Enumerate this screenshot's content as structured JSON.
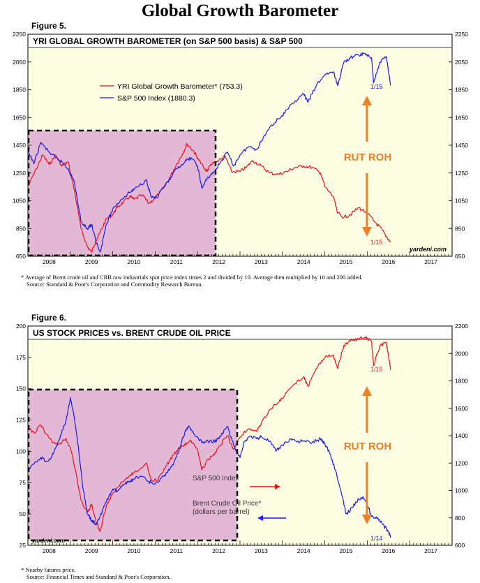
{
  "page": {
    "title": "Global Growth Barometer",
    "source_tag": "yardeni.com"
  },
  "chart_data": [
    {
      "type": "line",
      "figure_label": "Figure 5.",
      "title": "YRI GLOBAL GROWTH BAROMETER (on S&P 500 basis) & S&P 500",
      "x_ticks": [
        "2008",
        "2009",
        "2010",
        "2011",
        "2012",
        "2013",
        "2014",
        "2015",
        "2016",
        "2017"
      ],
      "xlim": [
        2007.5,
        2017.5
      ],
      "left_axis": {
        "ticks": [
          650,
          850,
          1050,
          1250,
          1450,
          1650,
          1850,
          2050,
          2250
        ],
        "ylim": [
          650,
          2250
        ]
      },
      "right_axis": {
        "ticks": [
          650,
          850,
          1050,
          1250,
          1450,
          1650,
          1850,
          2050,
          2250
        ],
        "ylim": [
          650,
          2250
        ]
      },
      "grid": false,
      "legend_position": "top-left",
      "series": [
        {
          "name": "YRI Global Growth Barometer* (753.3)",
          "color": "#e8141a",
          "axis": "left",
          "points": [
            [
              2007.5,
              1150
            ],
            [
              2007.7,
              1280
            ],
            [
              2007.85,
              1380
            ],
            [
              2008.0,
              1310
            ],
            [
              2008.15,
              1380
            ],
            [
              2008.3,
              1300
            ],
            [
              2008.45,
              1330
            ],
            [
              2008.6,
              1120
            ],
            [
              2008.75,
              850
            ],
            [
              2008.9,
              720
            ],
            [
              2009.0,
              680
            ],
            [
              2009.1,
              760
            ],
            [
              2009.2,
              820
            ],
            [
              2009.35,
              920
            ],
            [
              2009.5,
              950
            ],
            [
              2009.6,
              1000
            ],
            [
              2009.75,
              1040
            ],
            [
              2009.9,
              1080
            ],
            [
              2010.0,
              1060
            ],
            [
              2010.2,
              1090
            ],
            [
              2010.35,
              1030
            ],
            [
              2010.5,
              1070
            ],
            [
              2010.7,
              1140
            ],
            [
              2010.85,
              1220
            ],
            [
              2011.0,
              1310
            ],
            [
              2011.15,
              1390
            ],
            [
              2011.25,
              1460
            ],
            [
              2011.4,
              1410
            ],
            [
              2011.5,
              1360
            ],
            [
              2011.7,
              1260
            ],
            [
              2011.85,
              1320
            ],
            [
              2012.0,
              1340
            ],
            [
              2012.15,
              1370
            ],
            [
              2012.3,
              1260
            ],
            [
              2012.5,
              1260
            ],
            [
              2012.65,
              1290
            ],
            [
              2012.8,
              1340
            ],
            [
              2013.0,
              1300
            ],
            [
              2013.2,
              1250
            ],
            [
              2013.4,
              1240
            ],
            [
              2013.6,
              1260
            ],
            [
              2013.8,
              1290
            ],
            [
              2014.0,
              1300
            ],
            [
              2014.2,
              1290
            ],
            [
              2014.4,
              1250
            ],
            [
              2014.5,
              1150
            ],
            [
              2014.7,
              1080
            ],
            [
              2014.8,
              960
            ],
            [
              2014.95,
              930
            ],
            [
              2015.1,
              950
            ],
            [
              2015.3,
              1000
            ],
            [
              2015.5,
              960
            ],
            [
              2015.7,
              890
            ],
            [
              2015.85,
              840
            ],
            [
              2015.95,
              790
            ],
            [
              2016.05,
              753
            ]
          ],
          "end_label": "1/15"
        },
        {
          "name": "S&P 500 Index (1880.3)",
          "color": "#1a1aee",
          "axis": "right",
          "points": [
            [
              2007.5,
              1400
            ],
            [
              2007.65,
              1320
            ],
            [
              2007.8,
              1470
            ],
            [
              2008.0,
              1400
            ],
            [
              2008.15,
              1360
            ],
            [
              2008.3,
              1330
            ],
            [
              2008.45,
              1280
            ],
            [
              2008.6,
              1180
            ],
            [
              2008.75,
              900
            ],
            [
              2008.9,
              850
            ],
            [
              2009.0,
              880
            ],
            [
              2009.1,
              760
            ],
            [
              2009.2,
              680
            ],
            [
              2009.35,
              880
            ],
            [
              2009.5,
              990
            ],
            [
              2009.7,
              1060
            ],
            [
              2009.9,
              1110
            ],
            [
              2010.0,
              1130
            ],
            [
              2010.3,
              1200
            ],
            [
              2010.4,
              1080
            ],
            [
              2010.55,
              1070
            ],
            [
              2010.7,
              1150
            ],
            [
              2010.85,
              1200
            ],
            [
              2011.0,
              1280
            ],
            [
              2011.2,
              1330
            ],
            [
              2011.35,
              1360
            ],
            [
              2011.5,
              1300
            ],
            [
              2011.6,
              1140
            ],
            [
              2011.75,
              1220
            ],
            [
              2011.9,
              1260
            ],
            [
              2012.0,
              1310
            ],
            [
              2012.2,
              1400
            ],
            [
              2012.35,
              1300
            ],
            [
              2012.5,
              1380
            ],
            [
              2012.7,
              1440
            ],
            [
              2012.9,
              1420
            ],
            [
              2013.0,
              1480
            ],
            [
              2013.2,
              1580
            ],
            [
              2013.4,
              1640
            ],
            [
              2013.55,
              1680
            ],
            [
              2013.8,
              1770
            ],
            [
              2014.0,
              1820
            ],
            [
              2014.1,
              1760
            ],
            [
              2014.3,
              1880
            ],
            [
              2014.5,
              1960
            ],
            [
              2014.7,
              1980
            ],
            [
              2014.8,
              1880
            ],
            [
              2014.95,
              2050
            ],
            [
              2015.1,
              2080
            ],
            [
              2015.3,
              2100
            ],
            [
              2015.45,
              2110
            ],
            [
              2015.6,
              2080
            ],
            [
              2015.65,
              1900
            ],
            [
              2015.8,
              2050
            ],
            [
              2015.95,
              2090
            ],
            [
              2016.0,
              1990
            ],
            [
              2016.05,
              1880
            ]
          ],
          "end_label": "1/15"
        }
      ],
      "annotation_text": "RUT ROH"
    },
    {
      "type": "line",
      "figure_label": "Figure 6.",
      "title": "US STOCK PRICES vs. BRENT CRUDE OIL PRICE",
      "x_ticks": [
        "2008",
        "2009",
        "2010",
        "2011",
        "2012",
        "2013",
        "2014",
        "2015",
        "2016",
        "2017"
      ],
      "xlim": [
        2007.5,
        2017.5
      ],
      "left_axis": {
        "ticks": [
          25,
          50,
          75,
          100,
          125,
          150,
          175,
          200
        ],
        "ylim": [
          25,
          200
        ]
      },
      "right_axis": {
        "ticks": [
          600,
          800,
          1000,
          1200,
          1400,
          1600,
          1800,
          2000,
          2200
        ],
        "ylim": [
          600,
          2200
        ]
      },
      "grid": false,
      "series": [
        {
          "name": "S&P 500 Index",
          "color": "#e8141a",
          "axis": "right",
          "points": [
            [
              2007.5,
              1460
            ],
            [
              2007.65,
              1420
            ],
            [
              2007.8,
              1480
            ],
            [
              2008.0,
              1380
            ],
            [
              2008.2,
              1330
            ],
            [
              2008.4,
              1380
            ],
            [
              2008.55,
              1260
            ],
            [
              2008.75,
              930
            ],
            [
              2008.9,
              840
            ],
            [
              2009.0,
              900
            ],
            [
              2009.1,
              780
            ],
            [
              2009.2,
              700
            ],
            [
              2009.35,
              890
            ],
            [
              2009.5,
              980
            ],
            [
              2009.7,
              1060
            ],
            [
              2009.9,
              1110
            ],
            [
              2010.0,
              1130
            ],
            [
              2010.3,
              1200
            ],
            [
              2010.4,
              1080
            ],
            [
              2010.55,
              1070
            ],
            [
              2010.7,
              1150
            ],
            [
              2010.85,
              1220
            ],
            [
              2011.0,
              1290
            ],
            [
              2011.2,
              1340
            ],
            [
              2011.35,
              1360
            ],
            [
              2011.5,
              1300
            ],
            [
              2011.6,
              1150
            ],
            [
              2011.75,
              1230
            ],
            [
              2011.9,
              1260
            ],
            [
              2012.0,
              1320
            ],
            [
              2012.2,
              1400
            ],
            [
              2012.35,
              1300
            ],
            [
              2012.5,
              1390
            ],
            [
              2012.7,
              1450
            ],
            [
              2012.9,
              1430
            ],
            [
              2013.0,
              1490
            ],
            [
              2013.2,
              1590
            ],
            [
              2013.4,
              1640
            ],
            [
              2013.55,
              1690
            ],
            [
              2013.8,
              1780
            ],
            [
              2014.0,
              1830
            ],
            [
              2014.1,
              1760
            ],
            [
              2014.3,
              1890
            ],
            [
              2014.5,
              1970
            ],
            [
              2014.7,
              1990
            ],
            [
              2014.8,
              1890
            ],
            [
              2014.95,
              2060
            ],
            [
              2015.1,
              2090
            ],
            [
              2015.3,
              2110
            ],
            [
              2015.45,
              2120
            ],
            [
              2015.6,
              2090
            ],
            [
              2015.65,
              1910
            ],
            [
              2015.8,
              2060
            ],
            [
              2015.95,
              2080
            ],
            [
              2016.0,
              1980
            ],
            [
              2016.05,
              1880
            ]
          ],
          "end_label": "1/15"
        },
        {
          "name": "Brent Crude Oil Price*",
          "name_line2": "(dollars per barrel)",
          "color": "#1a1aee",
          "axis": "left",
          "points": [
            [
              2007.5,
              85
            ],
            [
              2007.65,
              90
            ],
            [
              2007.8,
              95
            ],
            [
              2007.95,
              92
            ],
            [
              2008.1,
              98
            ],
            [
              2008.25,
              110
            ],
            [
              2008.4,
              125
            ],
            [
              2008.5,
              143
            ],
            [
              2008.6,
              125
            ],
            [
              2008.7,
              100
            ],
            [
              2008.8,
              70
            ],
            [
              2008.9,
              50
            ],
            [
              2009.0,
              45
            ],
            [
              2009.1,
              42
            ],
            [
              2009.2,
              48
            ],
            [
              2009.35,
              60
            ],
            [
              2009.5,
              70
            ],
            [
              2009.6,
              68
            ],
            [
              2009.75,
              73
            ],
            [
              2009.9,
              76
            ],
            [
              2010.0,
              78
            ],
            [
              2010.2,
              80
            ],
            [
              2010.35,
              76
            ],
            [
              2010.5,
              74
            ],
            [
              2010.7,
              80
            ],
            [
              2010.85,
              86
            ],
            [
              2011.0,
              95
            ],
            [
              2011.2,
              115
            ],
            [
              2011.3,
              120
            ],
            [
              2011.45,
              112
            ],
            [
              2011.6,
              107
            ],
            [
              2011.75,
              108
            ],
            [
              2011.9,
              108
            ],
            [
              2012.0,
              110
            ],
            [
              2012.2,
              120
            ],
            [
              2012.35,
              105
            ],
            [
              2012.5,
              95
            ],
            [
              2012.6,
              108
            ],
            [
              2012.75,
              112
            ],
            [
              2012.9,
              110
            ],
            [
              2013.0,
              112
            ],
            [
              2013.2,
              108
            ],
            [
              2013.35,
              100
            ],
            [
              2013.5,
              105
            ],
            [
              2013.7,
              110
            ],
            [
              2013.85,
              108
            ],
            [
              2014.0,
              108
            ],
            [
              2014.2,
              107
            ],
            [
              2014.4,
              110
            ],
            [
              2014.5,
              106
            ],
            [
              2014.6,
              100
            ],
            [
              2014.75,
              85
            ],
            [
              2014.9,
              65
            ],
            [
              2015.0,
              50
            ],
            [
              2015.15,
              55
            ],
            [
              2015.3,
              62
            ],
            [
              2015.4,
              64
            ],
            [
              2015.5,
              58
            ],
            [
              2015.6,
              48
            ],
            [
              2015.75,
              47
            ],
            [
              2015.9,
              40
            ],
            [
              2016.0,
              36
            ],
            [
              2016.05,
              31
            ]
          ],
          "end_label": "1/14"
        }
      ],
      "annotation_text": "RUT ROH"
    }
  ],
  "notes": {
    "fig5_line1": "* Average of Brent crude oil and CRB raw industrials spot price index times 2 and divided by 10. Average then multiplied by 10 and 200 added.",
    "fig5_line2": "Source: Standard & Poor's Corporation and Commodity Research Bureau.",
    "fig6_line1": "* Nearby futures price.",
    "fig6_line2": "Source: Financial Times and Standard & Poor's Corporation."
  },
  "colors": {
    "panel_bg": "#fdfde4",
    "highlight_fill": "#e3b8d6",
    "annotation_orange": "#f08024",
    "red": "#e8141a",
    "blue": "#1a1aee"
  }
}
